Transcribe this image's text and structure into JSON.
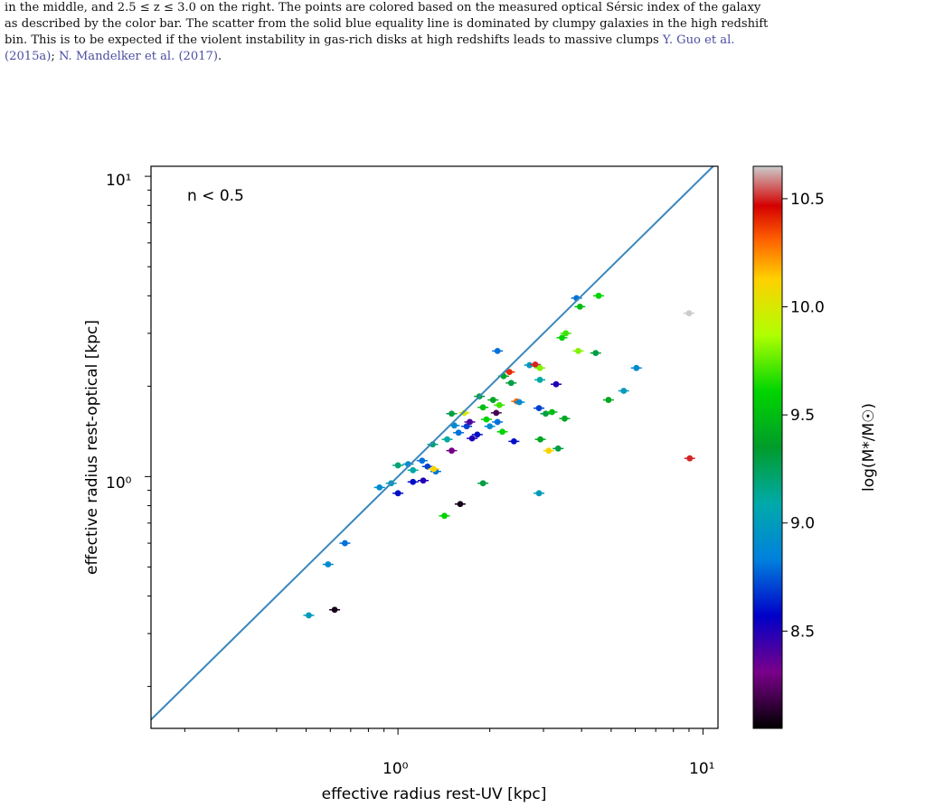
{
  "caption": {
    "line1": "in the middle, and 2.5 ≤ z ≤ 3.0 on the right. The points are colored based on the measured optical Sérsic index of the galaxy",
    "line2": "as described by the color bar. The scatter from the solid blue equality line is dominated by clumpy galaxies in the high redshift",
    "line3_a": "bin.  This is to be expected if the violent instability in gas-rich disks at high redshifts leads to massive clumps ",
    "cite1_a": "Y. Guo et al.",
    "cite1_b": "(2015a)",
    "sep": "; ",
    "cite2": "N. Mandelker et al. (2017)",
    "end": "."
  },
  "chart_data": {
    "type": "scatter",
    "annotation": "n < 0.5",
    "xlabel": "effective radius rest-UV [kpc]",
    "ylabel": "effective radius rest-optical [kpc]",
    "xscale": "log",
    "yscale": "log",
    "xlim": [
      0.155,
      11.2
    ],
    "ylim": [
      0.145,
      10.8
    ],
    "x_tick_labels": [
      "10⁰",
      "10¹"
    ],
    "y_tick_labels": [
      "10⁰",
      "10¹"
    ],
    "reference_line": "y = x",
    "reference_line_color": "#3a87bd",
    "colorbar": {
      "label": "log(M*/M☉)",
      "range": [
        8.05,
        10.65
      ],
      "tick_labels": [
        "8.5",
        "9.0",
        "9.5",
        "10.0",
        "10.5"
      ],
      "colormap": "nipy_spectral"
    },
    "points": [
      {
        "x": 0.51,
        "y": 0.345,
        "m": 9.0
      },
      {
        "x": 0.62,
        "y": 0.36,
        "m": 8.1
      },
      {
        "x": 0.59,
        "y": 0.51,
        "m": 8.9
      },
      {
        "x": 0.67,
        "y": 0.6,
        "m": 8.8
      },
      {
        "x": 0.87,
        "y": 0.92,
        "m": 8.9
      },
      {
        "x": 0.95,
        "y": 0.95,
        "m": 9.0
      },
      {
        "x": 1.0,
        "y": 0.88,
        "m": 8.6
      },
      {
        "x": 1.0,
        "y": 1.09,
        "m": 9.2
      },
      {
        "x": 1.08,
        "y": 1.1,
        "m": 8.9
      },
      {
        "x": 1.12,
        "y": 1.05,
        "m": 9.1
      },
      {
        "x": 1.12,
        "y": 0.96,
        "m": 8.6
      },
      {
        "x": 1.2,
        "y": 1.13,
        "m": 8.8
      },
      {
        "x": 1.21,
        "y": 0.97,
        "m": 8.5
      },
      {
        "x": 1.25,
        "y": 1.08,
        "m": 8.7
      },
      {
        "x": 1.33,
        "y": 1.04,
        "m": 8.8
      },
      {
        "x": 1.3,
        "y": 1.28,
        "m": 9.2
      },
      {
        "x": 1.31,
        "y": 1.06,
        "m": 10.1
      },
      {
        "x": 1.45,
        "y": 1.33,
        "m": 9.1
      },
      {
        "x": 1.5,
        "y": 1.22,
        "m": 8.3
      },
      {
        "x": 1.53,
        "y": 1.48,
        "m": 8.9
      },
      {
        "x": 1.5,
        "y": 1.62,
        "m": 9.3
      },
      {
        "x": 1.58,
        "y": 1.4,
        "m": 8.8
      },
      {
        "x": 1.65,
        "y": 1.63,
        "m": 10.0
      },
      {
        "x": 1.68,
        "y": 1.47,
        "m": 8.7
      },
      {
        "x": 1.72,
        "y": 1.52,
        "m": 8.4
      },
      {
        "x": 1.75,
        "y": 1.34,
        "m": 8.5
      },
      {
        "x": 1.82,
        "y": 1.38,
        "m": 8.6
      },
      {
        "x": 1.85,
        "y": 1.85,
        "m": 9.3
      },
      {
        "x": 1.9,
        "y": 1.7,
        "m": 9.5
      },
      {
        "x": 1.9,
        "y": 0.95,
        "m": 9.3
      },
      {
        "x": 1.95,
        "y": 1.55,
        "m": 9.6
      },
      {
        "x": 2.0,
        "y": 1.47,
        "m": 8.9
      },
      {
        "x": 2.05,
        "y": 1.8,
        "m": 9.4
      },
      {
        "x": 2.1,
        "y": 1.63,
        "m": 8.2
      },
      {
        "x": 2.12,
        "y": 1.52,
        "m": 8.8
      },
      {
        "x": 2.15,
        "y": 1.73,
        "m": 9.7
      },
      {
        "x": 2.2,
        "y": 1.41,
        "m": 9.6
      },
      {
        "x": 2.22,
        "y": 2.16,
        "m": 9.4
      },
      {
        "x": 2.32,
        "y": 2.23,
        "m": 10.4
      },
      {
        "x": 2.35,
        "y": 2.05,
        "m": 9.3
      },
      {
        "x": 2.4,
        "y": 1.31,
        "m": 8.6
      },
      {
        "x": 2.45,
        "y": 1.78,
        "m": 10.3
      },
      {
        "x": 2.5,
        "y": 1.77,
        "m": 8.9
      },
      {
        "x": 2.12,
        "y": 2.62,
        "m": 8.8
      },
      {
        "x": 1.42,
        "y": 0.74,
        "m": 9.6
      },
      {
        "x": 1.6,
        "y": 0.81,
        "m": 8.1
      },
      {
        "x": 2.7,
        "y": 2.35,
        "m": 9.0
      },
      {
        "x": 2.82,
        "y": 2.36,
        "m": 10.5
      },
      {
        "x": 2.92,
        "y": 2.3,
        "m": 9.8
      },
      {
        "x": 2.92,
        "y": 2.1,
        "m": 9.1
      },
      {
        "x": 2.93,
        "y": 1.33,
        "m": 9.4
      },
      {
        "x": 2.9,
        "y": 1.69,
        "m": 8.7
      },
      {
        "x": 2.9,
        "y": 0.88,
        "m": 9.0
      },
      {
        "x": 3.05,
        "y": 1.62,
        "m": 9.3
      },
      {
        "x": 3.12,
        "y": 1.22,
        "m": 10.1
      },
      {
        "x": 3.2,
        "y": 1.64,
        "m": 9.5
      },
      {
        "x": 3.3,
        "y": 2.03,
        "m": 8.5
      },
      {
        "x": 3.35,
        "y": 1.24,
        "m": 9.3
      },
      {
        "x": 3.45,
        "y": 2.9,
        "m": 9.6
      },
      {
        "x": 3.55,
        "y": 3.0,
        "m": 9.7
      },
      {
        "x": 3.52,
        "y": 1.56,
        "m": 9.4
      },
      {
        "x": 3.9,
        "y": 2.62,
        "m": 9.8
      },
      {
        "x": 3.85,
        "y": 3.93,
        "m": 8.8
      },
      {
        "x": 3.95,
        "y": 3.68,
        "m": 9.5
      },
      {
        "x": 4.45,
        "y": 2.58,
        "m": 9.3
      },
      {
        "x": 4.55,
        "y": 4.0,
        "m": 9.6
      },
      {
        "x": 4.9,
        "y": 1.8,
        "m": 9.4
      },
      {
        "x": 5.5,
        "y": 1.93,
        "m": 9.0
      },
      {
        "x": 6.05,
        "y": 2.3,
        "m": 8.9
      },
      {
        "x": 9.0,
        "y": 3.5,
        "m": 10.7
      },
      {
        "x": 9.05,
        "y": 1.15,
        "m": 10.5
      }
    ]
  }
}
